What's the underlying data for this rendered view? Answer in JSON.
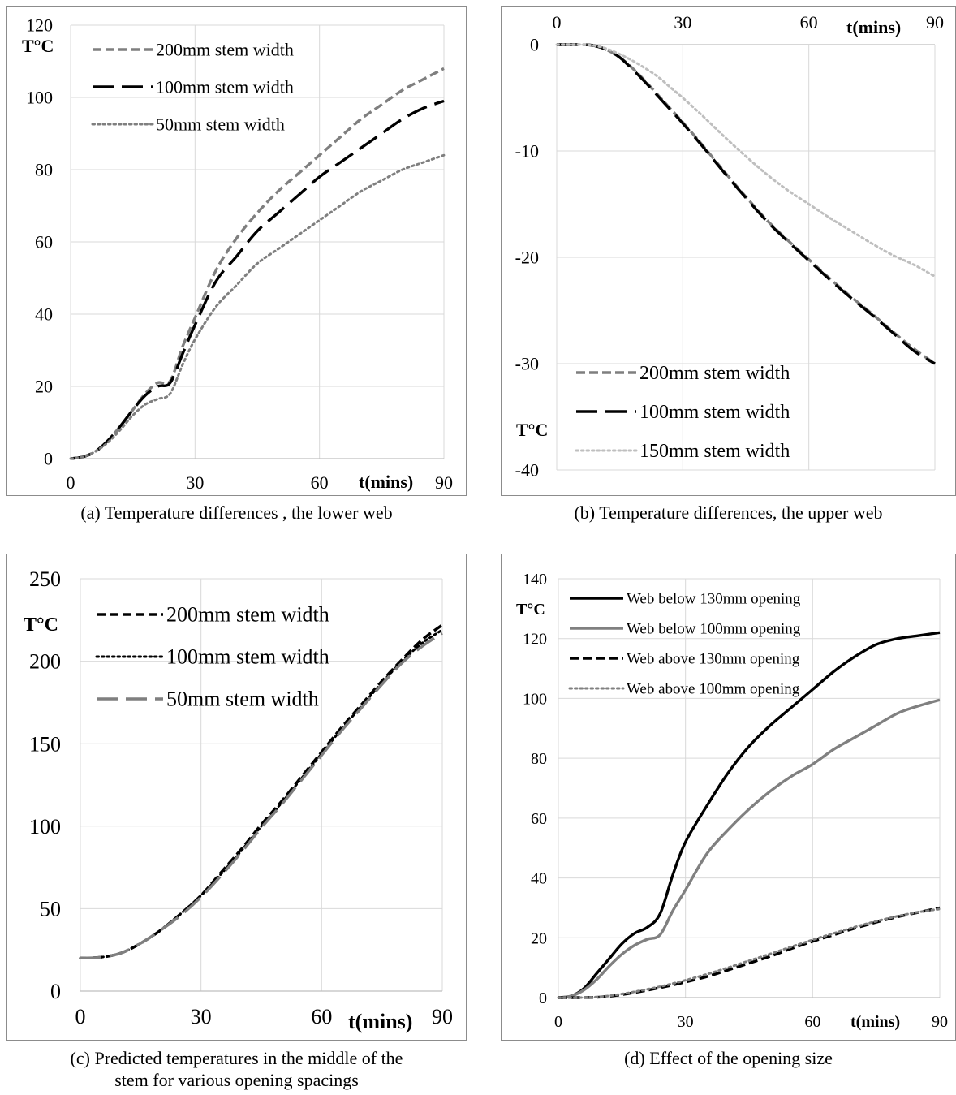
{
  "chart_data": [
    {
      "id": "a",
      "type": "line",
      "caption": "(a)  Temperature differences , the lower web",
      "xlabel": "t(mins)",
      "ylabel": "T°C",
      "xlim": [
        0,
        90
      ],
      "ylim": [
        0,
        120
      ],
      "xticks": [
        0,
        30,
        60,
        90
      ],
      "yticks": [
        0,
        20,
        40,
        60,
        80,
        100,
        120
      ],
      "grid": true,
      "legend_position": "top-left",
      "series": [
        {
          "name": "200mm stem width",
          "color": "#7f7f7f",
          "dash": "short-dash",
          "x": [
            0,
            3,
            6,
            9,
            12,
            15,
            18,
            21,
            24,
            27,
            30,
            35,
            40,
            45,
            50,
            55,
            60,
            65,
            70,
            75,
            80,
            85,
            90
          ],
          "y": [
            0,
            0.5,
            2,
            5,
            9,
            13.5,
            18,
            21,
            21.5,
            31,
            39,
            52,
            61,
            68,
            74,
            79,
            84,
            89,
            94,
            98,
            102,
            105,
            108
          ]
        },
        {
          "name": "100mm stem width",
          "color": "#000000",
          "dash": "long-dash",
          "x": [
            0,
            3,
            6,
            9,
            12,
            15,
            18,
            21,
            24,
            27,
            30,
            35,
            40,
            45,
            50,
            55,
            60,
            65,
            70,
            75,
            80,
            85,
            90
          ],
          "y": [
            0,
            0.5,
            2,
            5,
            9,
            13.5,
            17.5,
            20,
            21,
            29,
            37,
            49,
            56,
            63,
            68,
            73,
            78,
            82,
            86,
            90,
            94,
            97,
            99
          ]
        },
        {
          "name": "50mm stem width",
          "color": "#7f7f7f",
          "dash": "dotted",
          "x": [
            0,
            3,
            6,
            9,
            12,
            15,
            18,
            21,
            24,
            27,
            30,
            35,
            40,
            45,
            50,
            55,
            60,
            65,
            70,
            75,
            80,
            85,
            90
          ],
          "y": [
            0,
            0.5,
            2,
            4.5,
            8,
            12,
            15,
            16.5,
            18,
            26,
            33,
            42,
            48,
            54,
            58,
            62,
            66,
            70,
            74,
            77,
            80,
            82,
            84
          ]
        }
      ]
    },
    {
      "id": "b",
      "type": "line",
      "caption": "(b)  Temperature differences, the upper web",
      "xlabel": "t(mins)",
      "ylabel": "T°C",
      "xlim": [
        0,
        90
      ],
      "ylim": [
        -40,
        0
      ],
      "xticks": [
        0,
        30,
        60,
        90
      ],
      "yticks": [
        0,
        -10,
        -20,
        -30,
        -40
      ],
      "grid": true,
      "legend_position": "bottom-left",
      "series": [
        {
          "name": "200mm stem width",
          "color": "#7f7f7f",
          "dash": "short-dash",
          "x": [
            0,
            3,
            6,
            9,
            12,
            15,
            18,
            21,
            24,
            27,
            30,
            35,
            40,
            45,
            50,
            55,
            60,
            65,
            70,
            75,
            80,
            85,
            90
          ],
          "y": [
            0,
            0,
            0,
            -0.1,
            -0.5,
            -1.2,
            -2.2,
            -3.4,
            -4.7,
            -6,
            -7.3,
            -9.6,
            -12,
            -14.3,
            -16.5,
            -18.4,
            -20.2,
            -22,
            -23.7,
            -25.3,
            -27,
            -28.6,
            -30
          ]
        },
        {
          "name": "100mm stem width",
          "color": "#000000",
          "dash": "long-dash",
          "x": [
            0,
            3,
            6,
            9,
            12,
            15,
            18,
            21,
            24,
            27,
            30,
            35,
            40,
            45,
            50,
            55,
            60,
            65,
            70,
            75,
            80,
            85,
            90
          ],
          "y": [
            0,
            0,
            0,
            -0.1,
            -0.5,
            -1.2,
            -2.3,
            -3.5,
            -4.8,
            -6.1,
            -7.4,
            -9.7,
            -12.1,
            -14.4,
            -16.6,
            -18.5,
            -20.3,
            -22.1,
            -23.8,
            -25.4,
            -27.1,
            -28.8,
            -30
          ]
        },
        {
          "name": "150mm stem width",
          "color": "#bfbfbf",
          "dash": "dotted",
          "x": [
            0,
            3,
            6,
            9,
            12,
            15,
            18,
            21,
            24,
            27,
            30,
            35,
            40,
            45,
            50,
            55,
            60,
            65,
            70,
            75,
            80,
            85,
            90
          ],
          "y": [
            0,
            0,
            0,
            -0.1,
            -0.4,
            -0.9,
            -1.5,
            -2.2,
            -3,
            -4,
            -5,
            -6.8,
            -8.7,
            -10.5,
            -12.2,
            -13.7,
            -15,
            -16.3,
            -17.5,
            -18.7,
            -19.8,
            -20.7,
            -21.8
          ]
        }
      ]
    },
    {
      "id": "c",
      "type": "line",
      "caption": "(c)  Predicted temperatures in the middle of the stem for various opening spacings",
      "caption_line1": "(c)  Predicted temperatures in the middle of the",
      "caption_line2": "stem for various opening spacings",
      "xlabel": "t(mins)",
      "ylabel": "T°C",
      "xlim": [
        0,
        90
      ],
      "ylim": [
        0,
        250
      ],
      "xticks": [
        0,
        30,
        60,
        90
      ],
      "yticks": [
        0,
        50,
        100,
        150,
        200,
        250
      ],
      "grid": true,
      "legend_position": "top-left",
      "series": [
        {
          "name": "200mm stem width",
          "color": "#000000",
          "dash": "short-dash",
          "x": [
            0,
            5,
            10,
            15,
            20,
            25,
            30,
            35,
            40,
            45,
            50,
            55,
            60,
            65,
            70,
            75,
            80,
            85,
            90
          ],
          "y": [
            20,
            20.5,
            23,
            29,
            37,
            47,
            58,
            72,
            86,
            101,
            115,
            130,
            145,
            160,
            174,
            188,
            201,
            213,
            222
          ]
        },
        {
          "name": "100mm stem width",
          "color": "#000000",
          "dash": "dotted",
          "x": [
            0,
            5,
            10,
            15,
            20,
            25,
            30,
            35,
            40,
            45,
            50,
            55,
            60,
            65,
            70,
            75,
            80,
            85,
            90
          ],
          "y": [
            20,
            20.5,
            23,
            29,
            37,
            47,
            58,
            71,
            85,
            100,
            114,
            129,
            144,
            159,
            173,
            187,
            200,
            211,
            219
          ]
        },
        {
          "name": "50mm stem width",
          "color": "#7f7f7f",
          "dash": "long-dash",
          "x": [
            0,
            5,
            10,
            15,
            20,
            25,
            30,
            35,
            40,
            45,
            50,
            55,
            60,
            65,
            70,
            75,
            80,
            85,
            90
          ],
          "y": [
            20,
            20.5,
            23,
            29,
            37,
            46,
            57,
            70,
            84,
            99,
            113,
            128,
            143,
            158,
            172,
            186,
            199,
            209,
            217
          ]
        }
      ]
    },
    {
      "id": "d",
      "type": "line",
      "caption": "(d)  Effect of the opening size",
      "xlabel": "t(mins)",
      "ylabel": "T°C",
      "xlim": [
        0,
        90
      ],
      "ylim": [
        0,
        140
      ],
      "xticks": [
        0,
        30,
        60,
        90
      ],
      "yticks": [
        0,
        20,
        40,
        60,
        80,
        100,
        120,
        140
      ],
      "grid": true,
      "legend_position": "top-left",
      "series": [
        {
          "name": "Web below 130mm opening",
          "color": "#000000",
          "dash": "solid",
          "x": [
            0,
            3,
            6,
            9,
            12,
            15,
            18,
            21,
            24,
            27,
            30,
            35,
            40,
            45,
            50,
            55,
            60,
            65,
            70,
            75,
            80,
            85,
            90
          ],
          "y": [
            0,
            0.5,
            3,
            8,
            13,
            18,
            21.5,
            23.5,
            28,
            41,
            52,
            64,
            75,
            84,
            91,
            97,
            103,
            109,
            114,
            118,
            120,
            121,
            122
          ]
        },
        {
          "name": "Web below 100mm opening",
          "color": "#808080",
          "dash": "solid",
          "x": [
            0,
            3,
            6,
            9,
            12,
            15,
            18,
            21,
            24,
            27,
            30,
            35,
            40,
            45,
            50,
            55,
            60,
            65,
            70,
            75,
            80,
            85,
            90
          ],
          "y": [
            0,
            0.5,
            2.5,
            6,
            10.5,
            14.5,
            17.5,
            19.5,
            21,
            29,
            36,
            48,
            56,
            63,
            69,
            74,
            78,
            83,
            87,
            91,
            95,
            97.5,
            99.5
          ]
        },
        {
          "name": "Web above 130mm opening",
          "color": "#000000",
          "dash": "short-dash",
          "x": [
            0,
            5,
            10,
            15,
            20,
            25,
            30,
            35,
            40,
            45,
            50,
            55,
            60,
            65,
            70,
            75,
            80,
            85,
            90
          ],
          "y": [
            0,
            0,
            0.2,
            1,
            2.2,
            3.6,
            5.2,
            7,
            9.2,
            11.5,
            13.8,
            16.4,
            18.8,
            21,
            23.2,
            25.2,
            27,
            28.5,
            30
          ]
        },
        {
          "name": "Web above 100mm opening",
          "color": "#808080",
          "dash": "dotted",
          "x": [
            0,
            5,
            10,
            15,
            20,
            25,
            30,
            35,
            40,
            45,
            50,
            55,
            60,
            65,
            70,
            75,
            80,
            85,
            90
          ],
          "y": [
            0,
            0,
            0.3,
            1.2,
            2.5,
            4,
            5.8,
            7.8,
            10,
            12.3,
            14.6,
            17,
            19.3,
            21.5,
            23.6,
            25.5,
            27.2,
            28.6,
            29.6
          ]
        }
      ]
    }
  ]
}
